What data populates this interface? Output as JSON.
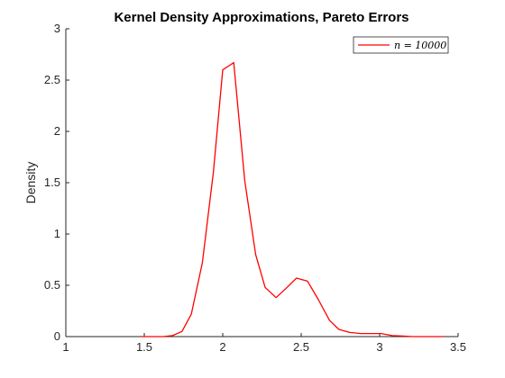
{
  "chart_data": {
    "type": "line",
    "title": "Kernel Density Approximations, Pareto Errors",
    "xlabel": "",
    "ylabel": "Density",
    "xlim": [
      1,
      3.5
    ],
    "ylim": [
      0,
      3
    ],
    "xticks": [
      1,
      1.5,
      2,
      2.5,
      3,
      3.5
    ],
    "xtick_labels": [
      "1",
      "1.5",
      "2",
      "2.5",
      "3",
      "3.5"
    ],
    "yticks": [
      0,
      0.5,
      1,
      1.5,
      2,
      2.5,
      3
    ],
    "ytick_labels": [
      "0",
      "0.5",
      "1",
      "1.5",
      "2",
      "2.5",
      "3"
    ],
    "grid": false,
    "legend_position": "top-right",
    "series": [
      {
        "name": "n = 10000",
        "color": "#ff0000",
        "x": [
          1.48,
          1.55,
          1.62,
          1.68,
          1.74,
          1.8,
          1.87,
          1.94,
          2.0,
          2.07,
          2.14,
          2.21,
          2.27,
          2.34,
          2.41,
          2.47,
          2.54,
          2.61,
          2.68,
          2.74,
          2.81,
          2.88,
          2.94,
          3.01,
          3.08,
          3.15,
          3.21,
          3.28,
          3.35,
          3.41
        ],
        "y": [
          0.0,
          0.0,
          0.0,
          0.01,
          0.05,
          0.22,
          0.72,
          1.6,
          2.6,
          2.67,
          1.52,
          0.8,
          0.48,
          0.38,
          0.48,
          0.57,
          0.54,
          0.36,
          0.16,
          0.07,
          0.04,
          0.03,
          0.03,
          0.03,
          0.01,
          0.005,
          0.0,
          0.0,
          0.0,
          0.0
        ]
      }
    ],
    "legend_label": "n = 10000"
  }
}
